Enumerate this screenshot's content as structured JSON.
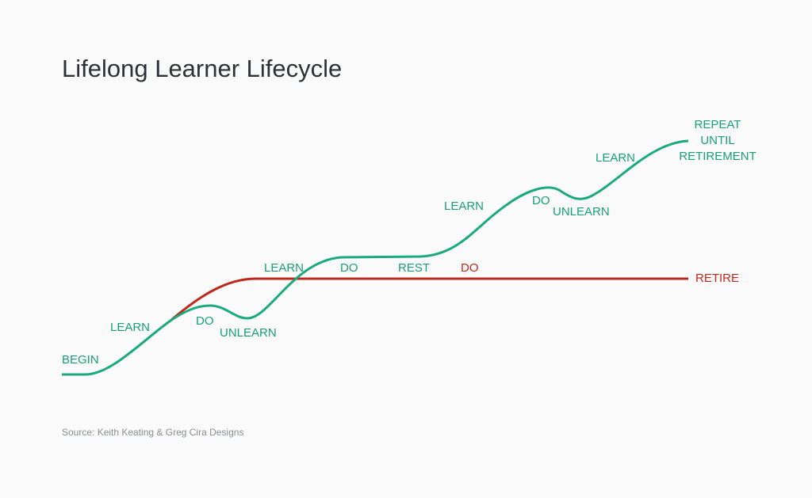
{
  "title": "Lifelong Learner Lifecycle",
  "growth_labels": [
    "BEGIN",
    "LEARN",
    "DO",
    "UNLEARN",
    "LEARN",
    "DO",
    "REST",
    "LEARN",
    "DO",
    "UNLEARN",
    "LEARN"
  ],
  "repeat_label": [
    "REPEAT",
    "UNTIL",
    "RETIREMENT"
  ],
  "stop_labels": [
    "DO",
    "RETIRE"
  ],
  "source": "Source: Keith Keating & Greg Cira Designs"
}
